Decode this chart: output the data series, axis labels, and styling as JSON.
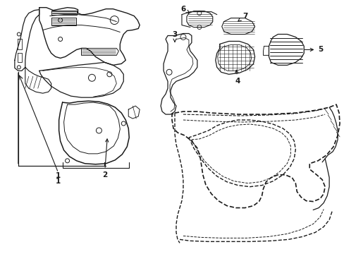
{
  "background_color": "#ffffff",
  "line_color": "#1a1a1a",
  "figsize": [
    4.89,
    3.6
  ],
  "dpi": 100,
  "label_fs": 7.5
}
